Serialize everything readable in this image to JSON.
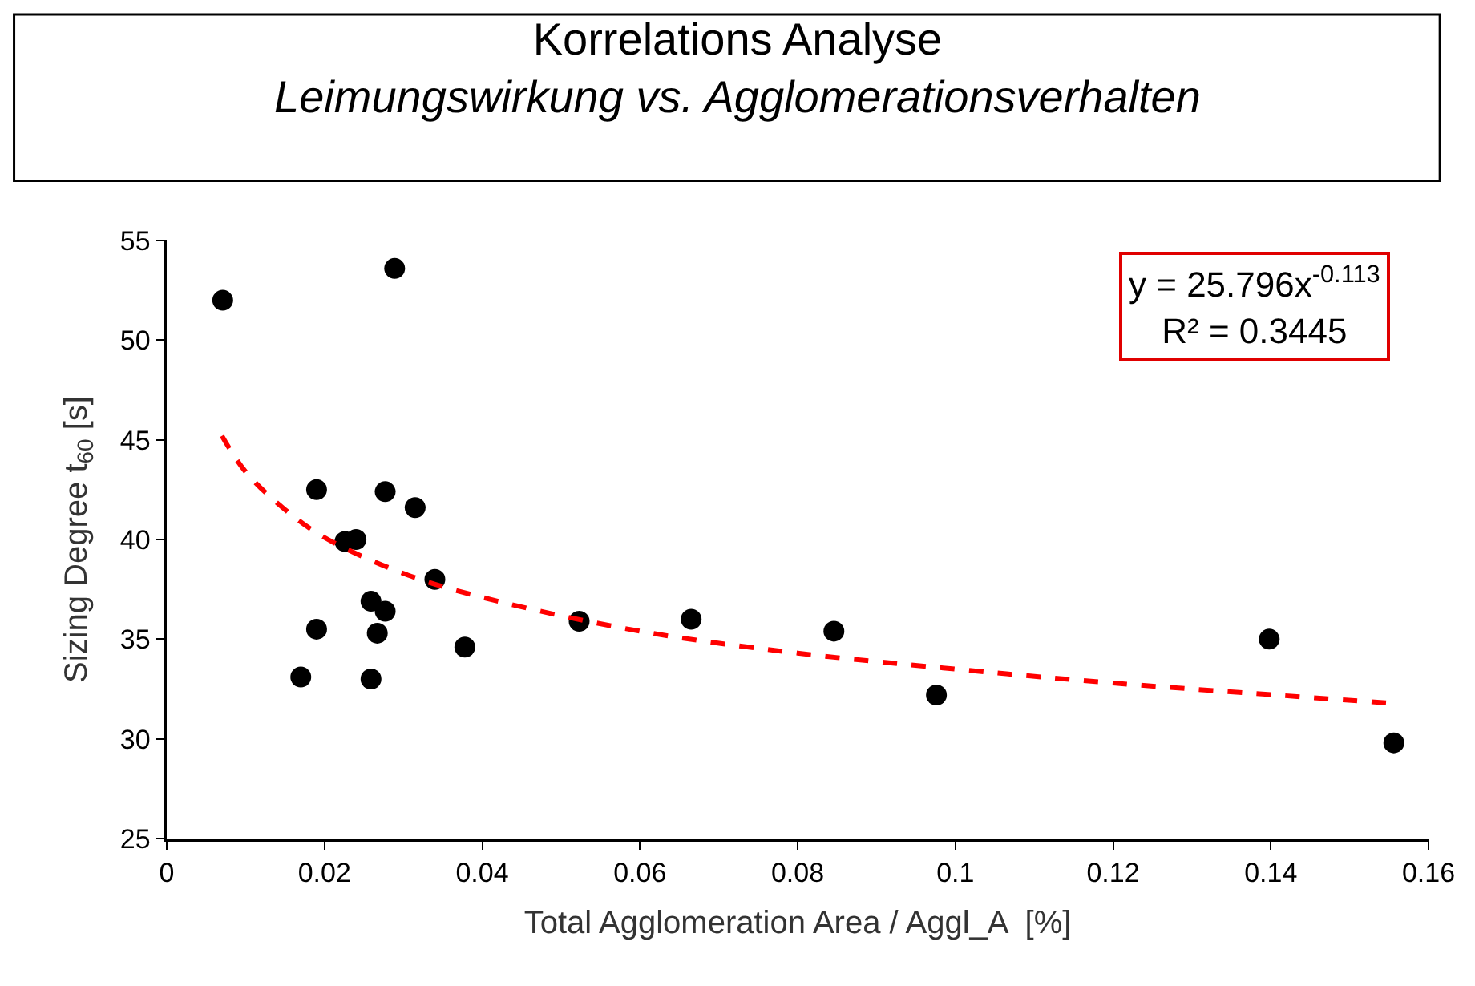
{
  "chart_data": {
    "type": "scatter",
    "title": "Korrelations Analyse",
    "subtitle": "Leimungswirkung vs. Agglomerationsverhalten",
    "xlabel": "Total Agglomeration Area / Aggl_A  [%]",
    "ylabel": "Sizing Degree t$_{60}$ [s]",
    "xlim": [
      0,
      0.16
    ],
    "xticks": [
      0,
      0.02,
      0.04,
      0.06,
      0.08,
      0.1,
      0.12,
      0.14,
      0.16
    ],
    "ylim": [
      25,
      55
    ],
    "yticks": [
      25,
      30,
      35,
      40,
      45,
      50,
      55
    ],
    "marker": "circle",
    "annotations": [
      "y = 25.796x$^{-0.113}$\nR² = 0.3445"
    ],
    "series": [
      {
        "color": "#000000",
        "x": [
          0.0071,
          0.0289,
          0.019,
          0.0277,
          0.0315,
          0.0226,
          0.024,
          0.034,
          0.0259,
          0.0277,
          0.0267,
          0.019,
          0.0378,
          0.017,
          0.0259,
          0.0523,
          0.0665,
          0.0846,
          0.0976,
          0.1398,
          0.1556
        ],
        "values": [
          52.0,
          53.6,
          42.5,
          42.4,
          41.6,
          39.9,
          40.0,
          38.0,
          36.9,
          36.4,
          35.3,
          35.5,
          34.6,
          33.1,
          33.0,
          35.9,
          36.0,
          35.4,
          32.2,
          35.0,
          29.8
        ]
      },
      {
        "type": "line",
        "color": "#ff0000",
        "line_style": "dashed",
        "marker": "none",
        "x": [
          0.007,
          0.01,
          0.015,
          0.02,
          0.03,
          0.04,
          0.06,
          0.08,
          0.1,
          0.12,
          0.155
        ],
        "values": [
          45.2,
          43.4,
          41.5,
          40.1,
          38.3,
          37.1,
          35.4,
          34.3,
          33.5,
          32.8,
          31.8
        ]
      }
    ]
  }
}
